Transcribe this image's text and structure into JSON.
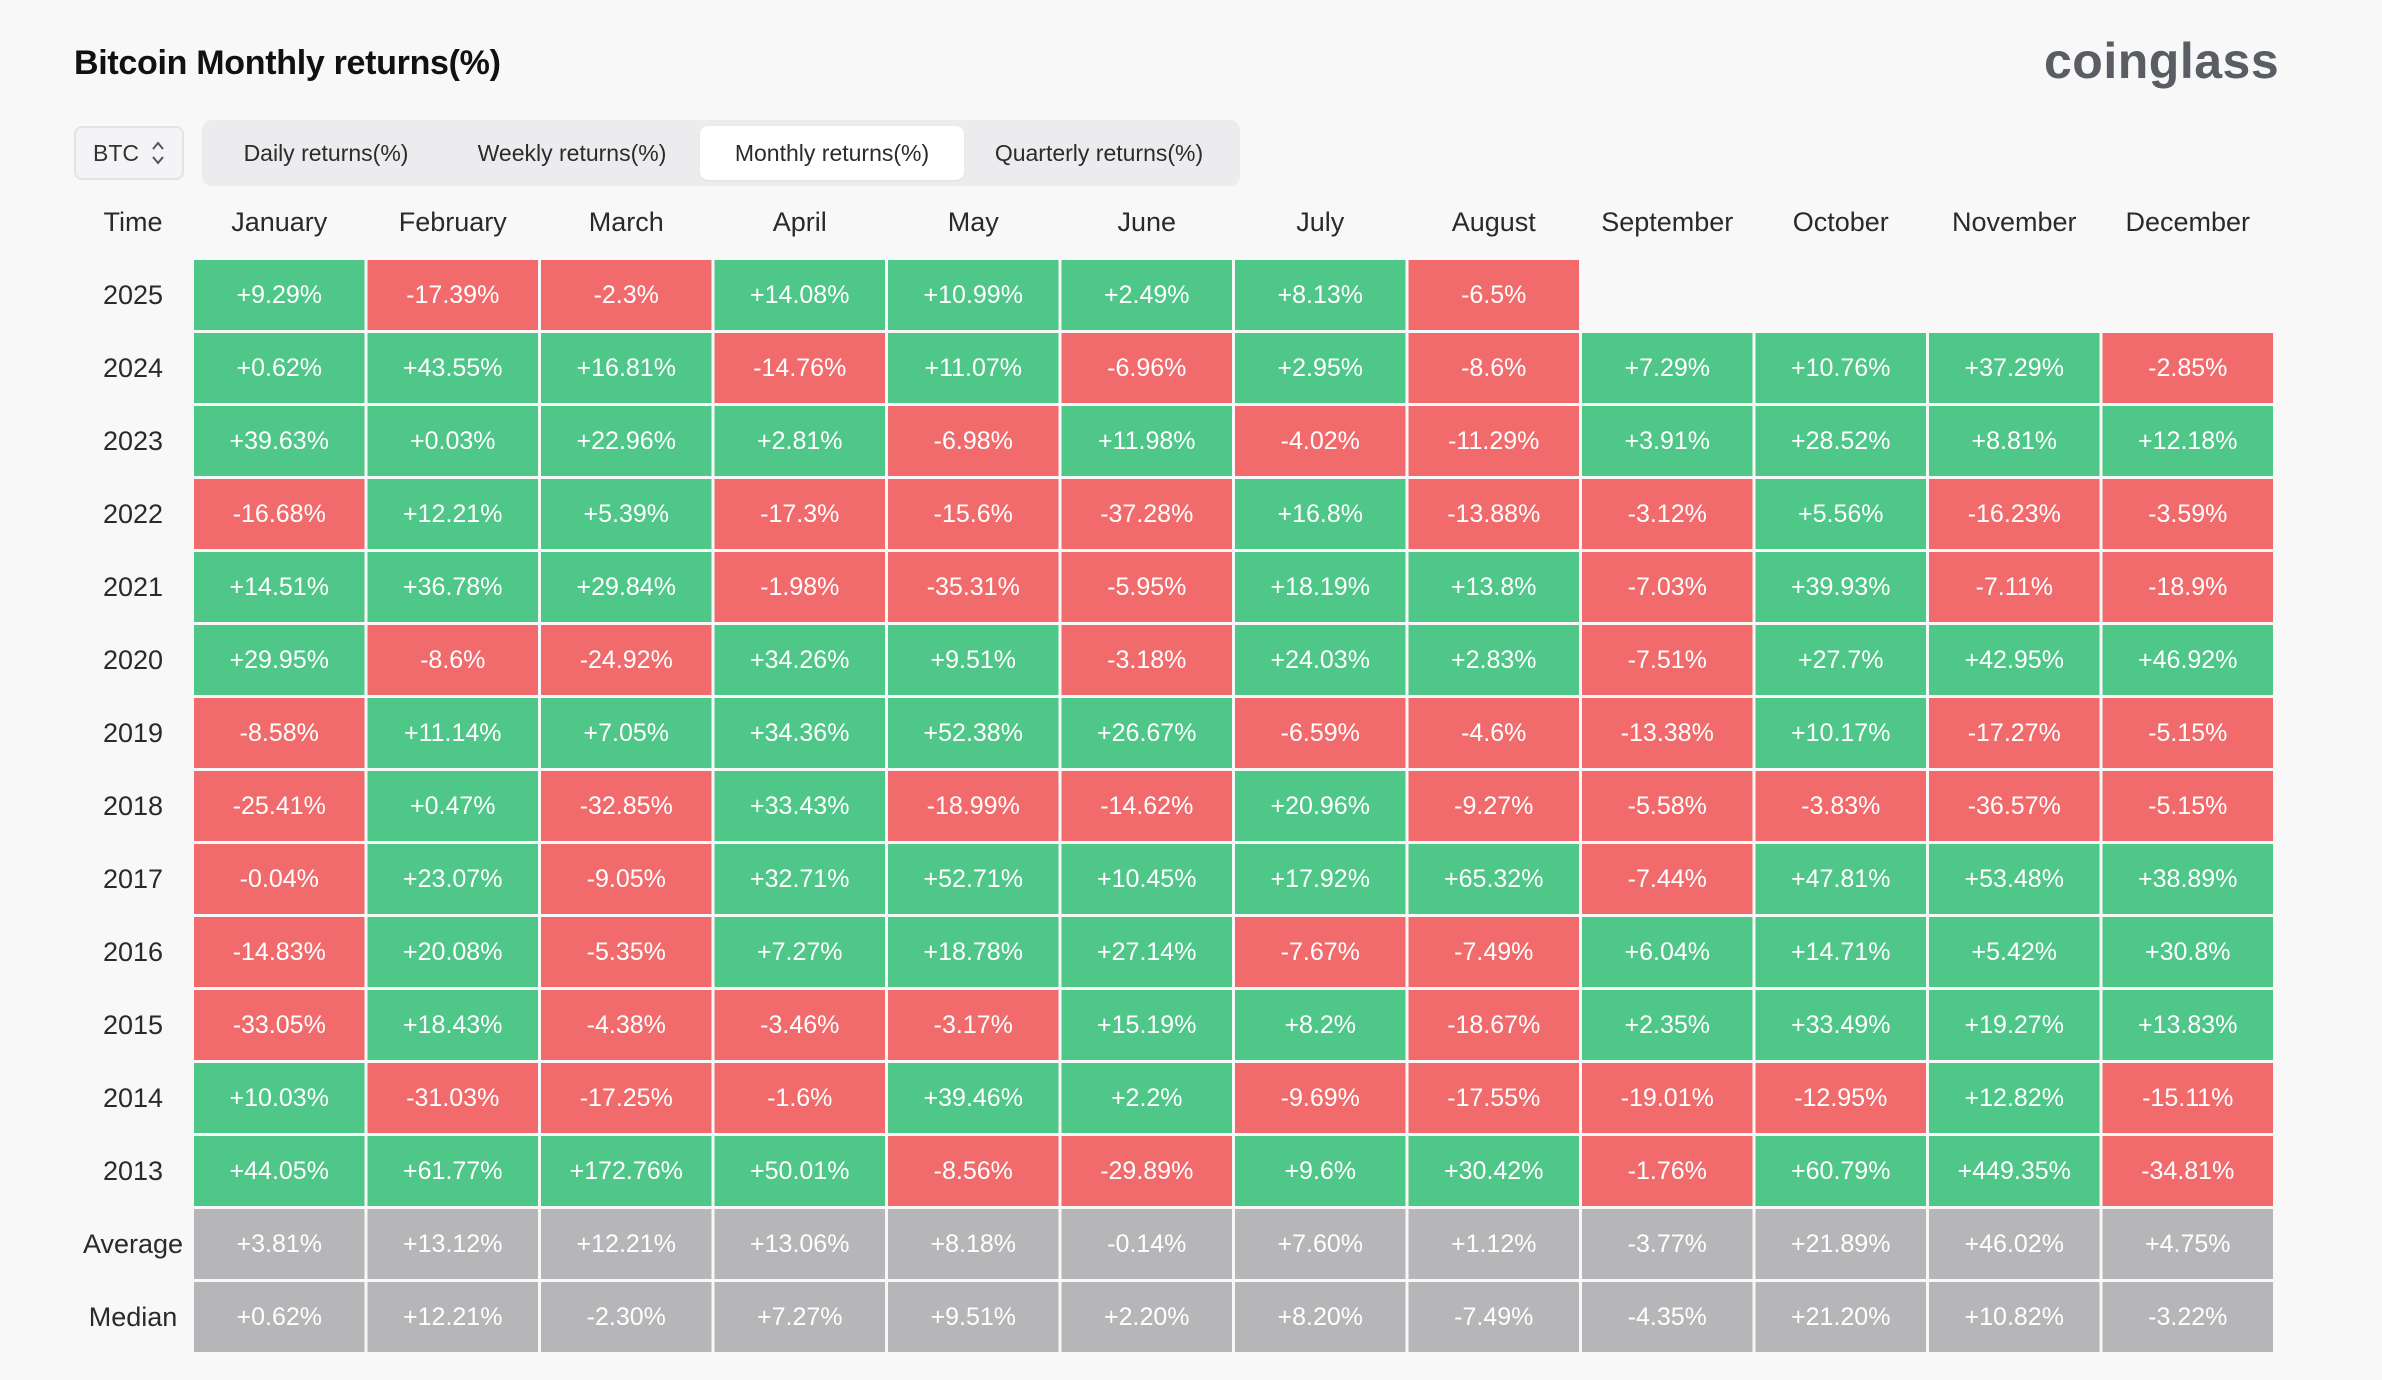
{
  "title": "Bitcoin Monthly returns(%)",
  "brand": "coinglass",
  "coin_select": {
    "value": "BTC",
    "icon": "up-down-chevron-icon"
  },
  "tabs": [
    {
      "label": "Daily returns(%)",
      "active": false
    },
    {
      "label": "Weekly returns(%)",
      "active": false
    },
    {
      "label": "Monthly returns(%)",
      "active": true
    },
    {
      "label": "Quarterly returns(%)",
      "active": false
    }
  ],
  "colors": {
    "positive": "#4fc788",
    "negative": "#f26b6c",
    "summary": "#b6b6b8",
    "background": "#f8f8f9"
  },
  "chart_data": {
    "type": "table",
    "time_header": "Time",
    "columns": [
      "January",
      "February",
      "March",
      "April",
      "May",
      "June",
      "July",
      "August",
      "September",
      "October",
      "November",
      "December"
    ],
    "rows": [
      {
        "label": "2025",
        "values": [
          "+9.29%",
          "-17.39%",
          "-2.3%",
          "+14.08%",
          "+10.99%",
          "+2.49%",
          "+8.13%",
          "-6.5%",
          "",
          "",
          "",
          ""
        ]
      },
      {
        "label": "2024",
        "values": [
          "+0.62%",
          "+43.55%",
          "+16.81%",
          "-14.76%",
          "+11.07%",
          "-6.96%",
          "+2.95%",
          "-8.6%",
          "+7.29%",
          "+10.76%",
          "+37.29%",
          "-2.85%"
        ]
      },
      {
        "label": "2023",
        "values": [
          "+39.63%",
          "+0.03%",
          "+22.96%",
          "+2.81%",
          "-6.98%",
          "+11.98%",
          "-4.02%",
          "-11.29%",
          "+3.91%",
          "+28.52%",
          "+8.81%",
          "+12.18%"
        ]
      },
      {
        "label": "2022",
        "values": [
          "-16.68%",
          "+12.21%",
          "+5.39%",
          "-17.3%",
          "-15.6%",
          "-37.28%",
          "+16.8%",
          "-13.88%",
          "-3.12%",
          "+5.56%",
          "-16.23%",
          "-3.59%"
        ]
      },
      {
        "label": "2021",
        "values": [
          "+14.51%",
          "+36.78%",
          "+29.84%",
          "-1.98%",
          "-35.31%",
          "-5.95%",
          "+18.19%",
          "+13.8%",
          "-7.03%",
          "+39.93%",
          "-7.11%",
          "-18.9%"
        ]
      },
      {
        "label": "2020",
        "values": [
          "+29.95%",
          "-8.6%",
          "-24.92%",
          "+34.26%",
          "+9.51%",
          "-3.18%",
          "+24.03%",
          "+2.83%",
          "-7.51%",
          "+27.7%",
          "+42.95%",
          "+46.92%"
        ]
      },
      {
        "label": "2019",
        "values": [
          "-8.58%",
          "+11.14%",
          "+7.05%",
          "+34.36%",
          "+52.38%",
          "+26.67%",
          "-6.59%",
          "-4.6%",
          "-13.38%",
          "+10.17%",
          "-17.27%",
          "-5.15%"
        ]
      },
      {
        "label": "2018",
        "values": [
          "-25.41%",
          "+0.47%",
          "-32.85%",
          "+33.43%",
          "-18.99%",
          "-14.62%",
          "+20.96%",
          "-9.27%",
          "-5.58%",
          "-3.83%",
          "-36.57%",
          "-5.15%"
        ]
      },
      {
        "label": "2017",
        "values": [
          "-0.04%",
          "+23.07%",
          "-9.05%",
          "+32.71%",
          "+52.71%",
          "+10.45%",
          "+17.92%",
          "+65.32%",
          "-7.44%",
          "+47.81%",
          "+53.48%",
          "+38.89%"
        ]
      },
      {
        "label": "2016",
        "values": [
          "-14.83%",
          "+20.08%",
          "-5.35%",
          "+7.27%",
          "+18.78%",
          "+27.14%",
          "-7.67%",
          "-7.49%",
          "+6.04%",
          "+14.71%",
          "+5.42%",
          "+30.8%"
        ]
      },
      {
        "label": "2015",
        "values": [
          "-33.05%",
          "+18.43%",
          "-4.38%",
          "-3.46%",
          "-3.17%",
          "+15.19%",
          "+8.2%",
          "-18.67%",
          "+2.35%",
          "+33.49%",
          "+19.27%",
          "+13.83%"
        ]
      },
      {
        "label": "2014",
        "values": [
          "+10.03%",
          "-31.03%",
          "-17.25%",
          "-1.6%",
          "+39.46%",
          "+2.2%",
          "-9.69%",
          "-17.55%",
          "-19.01%",
          "-12.95%",
          "+12.82%",
          "-15.11%"
        ]
      },
      {
        "label": "2013",
        "values": [
          "+44.05%",
          "+61.77%",
          "+172.76%",
          "+50.01%",
          "-8.56%",
          "-29.89%",
          "+9.6%",
          "+30.42%",
          "-1.76%",
          "+60.79%",
          "+449.35%",
          "-34.81%"
        ]
      }
    ],
    "summary_rows": [
      {
        "label": "Average",
        "values": [
          "+3.81%",
          "+13.12%",
          "+12.21%",
          "+13.06%",
          "+8.18%",
          "-0.14%",
          "+7.60%",
          "+1.12%",
          "-3.77%",
          "+21.89%",
          "+46.02%",
          "+4.75%"
        ]
      },
      {
        "label": "Median",
        "values": [
          "+0.62%",
          "+12.21%",
          "-2.30%",
          "+7.27%",
          "+9.51%",
          "+2.20%",
          "+8.20%",
          "-7.49%",
          "-4.35%",
          "+21.20%",
          "+10.82%",
          "-3.22%"
        ]
      }
    ]
  }
}
